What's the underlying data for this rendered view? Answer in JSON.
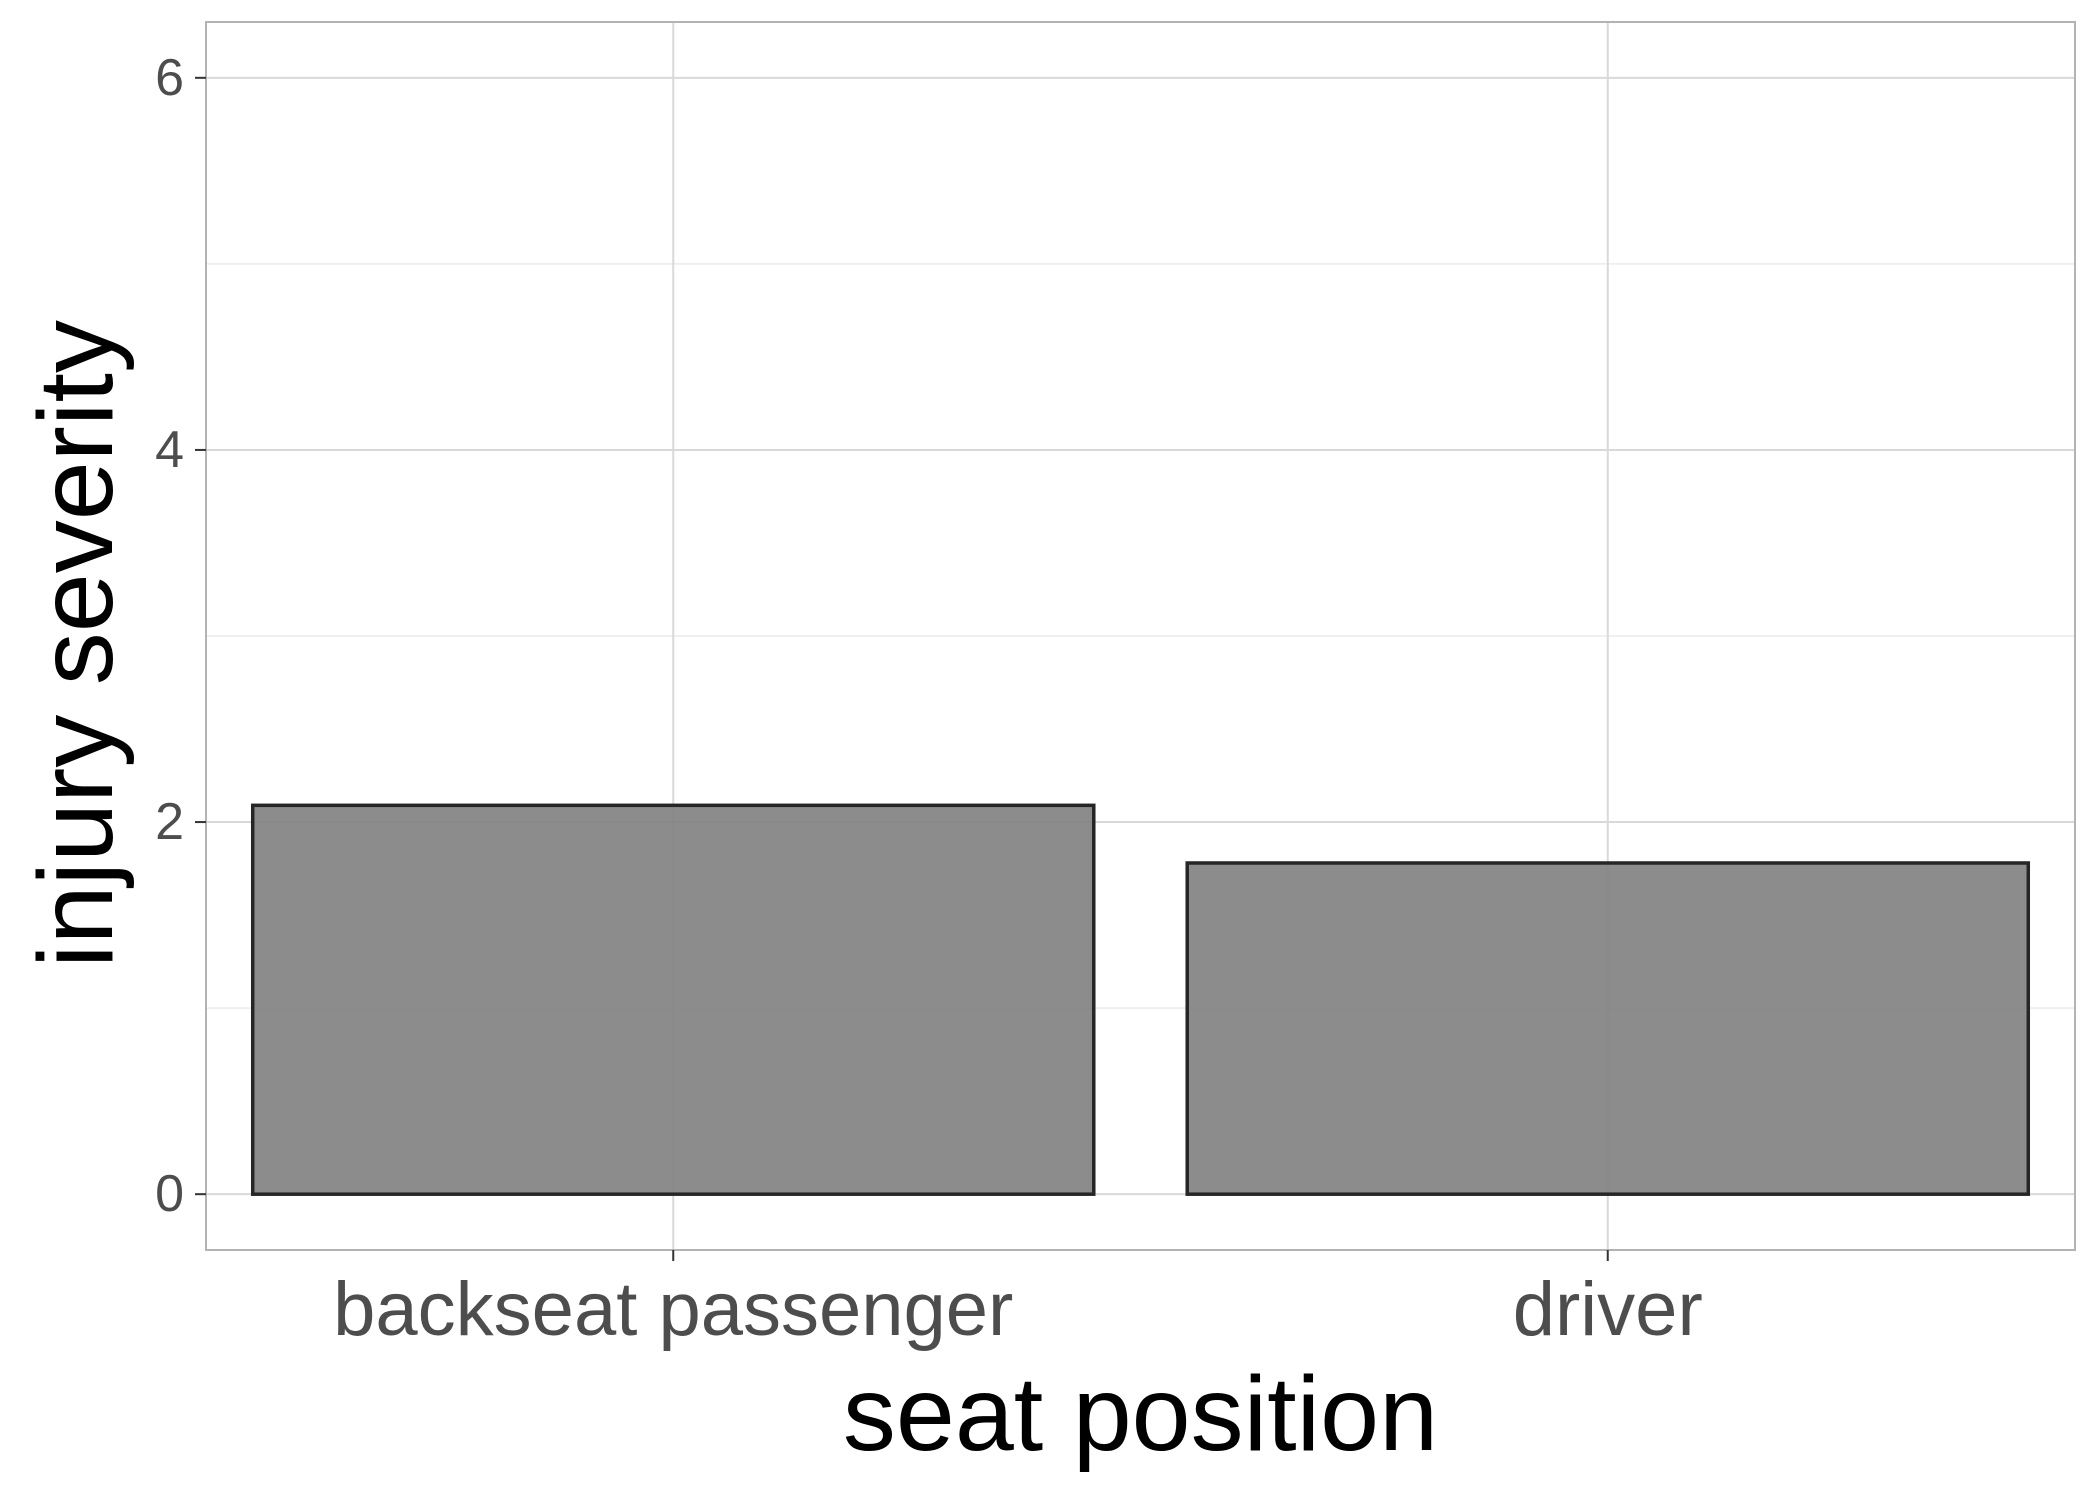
{
  "chart_data": {
    "type": "bar",
    "categories": [
      "backseat passenger",
      "driver"
    ],
    "values": [
      2.09,
      1.78
    ],
    "xlabel": "seat position",
    "ylabel": "injury severity",
    "ylim": [
      -0.3,
      6.3
    ],
    "yticks": [
      0,
      2,
      4,
      6
    ],
    "grid": true,
    "bar_fill": "#7f7f7f",
    "bar_outline": "#262626",
    "grid_color": "#d9d9d9",
    "panel_border": "#b3b3b3"
  }
}
